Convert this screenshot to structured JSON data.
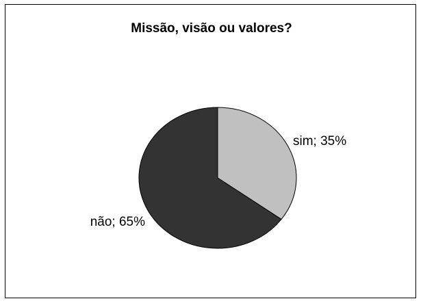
{
  "chart_data": {
    "type": "pie",
    "title": "Missão, visão ou valores?",
    "slices": [
      {
        "label": "sim",
        "value": 35,
        "color": "#c0c0c0",
        "data_label": "sim; 35%"
      },
      {
        "label": "não",
        "value": 65,
        "color": "#333333",
        "data_label": "não; 65%"
      }
    ],
    "legend": "none"
  }
}
